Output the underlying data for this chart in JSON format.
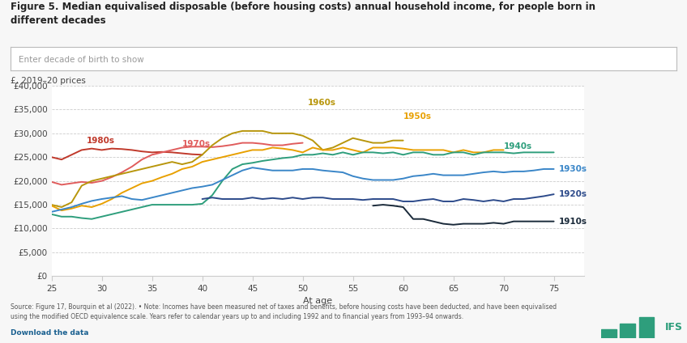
{
  "title": "Figure 5. Median equivalised disposable (before housing costs) annual household income, for people born in\ndifferent decades",
  "search_box_label": "Enter decade of birth to show",
  "ylabel": "£, 2019–20 prices",
  "xlabel": "At age",
  "source_text": "Source: Figure 17, Bourquin et al (2022). • Note: Incomes have been measured net of taxes and benefits, before housing costs have been deducted, and have been equivalised\nusing the modified OECD equivalence scale. Years refer to calendar years up to and including 1992 and to financial years from 1993–94 onwards.",
  "download_text": "Download the data",
  "background_color": "#f7f7f7",
  "plot_background": "#ffffff",
  "ylim": [
    0,
    40000
  ],
  "yticks": [
    0,
    5000,
    10000,
    15000,
    20000,
    25000,
    30000,
    35000,
    40000
  ],
  "xticks": [
    25,
    30,
    35,
    40,
    45,
    50,
    55,
    60,
    65,
    70,
    75
  ],
  "series": {
    "1980s": {
      "color": "#c0392b",
      "label_color": "#c0392b",
      "ages": [
        25,
        26,
        27,
        28,
        29,
        30,
        31,
        32,
        33,
        34,
        35,
        36,
        37,
        38,
        39,
        40
      ],
      "values": [
        25000,
        24500,
        25500,
        26500,
        26800,
        26500,
        26800,
        26700,
        26500,
        26200,
        26000,
        26100,
        26000,
        25800,
        25600,
        25500
      ],
      "label_age": 28.5,
      "label_val": 28500
    },
    "1970s": {
      "color": "#e05c5c",
      "label_color": "#e05c5c",
      "ages": [
        25,
        26,
        27,
        28,
        29,
        30,
        31,
        32,
        33,
        34,
        35,
        36,
        37,
        38,
        39,
        40,
        41,
        42,
        43,
        44,
        45,
        46,
        47,
        48,
        49,
        50
      ],
      "values": [
        19800,
        19200,
        19500,
        19800,
        19600,
        20000,
        20800,
        21800,
        23000,
        24500,
        25500,
        26000,
        26500,
        27000,
        27200,
        27200,
        27100,
        27300,
        27600,
        28000,
        28000,
        27800,
        27500,
        27500,
        27800,
        28000
      ],
      "label_age": 38,
      "label_val": 27800
    },
    "1960s": {
      "color": "#b8960c",
      "label_color": "#b8960c",
      "ages": [
        25,
        26,
        27,
        28,
        29,
        30,
        31,
        32,
        33,
        34,
        35,
        36,
        37,
        38,
        39,
        40,
        41,
        42,
        43,
        44,
        45,
        46,
        47,
        48,
        49,
        50,
        51,
        52,
        53,
        54,
        55,
        56,
        57,
        58,
        59,
        60
      ],
      "values": [
        15000,
        14500,
        15500,
        19000,
        20000,
        20500,
        21000,
        21500,
        22000,
        22500,
        23000,
        23500,
        24000,
        23500,
        24000,
        25500,
        27500,
        29000,
        30000,
        30500,
        30500,
        30500,
        30000,
        30000,
        30000,
        29500,
        28500,
        26500,
        27000,
        28000,
        29000,
        28500,
        28000,
        28000,
        28500,
        28500
      ],
      "label_age": 50,
      "label_val": 36500
    },
    "1950s": {
      "color": "#e8a000",
      "label_color": "#e8a000",
      "ages": [
        25,
        26,
        27,
        28,
        29,
        30,
        31,
        32,
        33,
        34,
        35,
        36,
        37,
        38,
        39,
        40,
        41,
        42,
        43,
        44,
        45,
        46,
        47,
        48,
        49,
        50,
        51,
        52,
        53,
        54,
        55,
        56,
        57,
        58,
        59,
        60,
        61,
        62,
        63,
        64,
        65,
        66,
        67,
        68,
        69,
        70
      ],
      "values": [
        14800,
        13800,
        14200,
        14800,
        14500,
        15200,
        16200,
        17500,
        18500,
        19500,
        20000,
        20800,
        21500,
        22500,
        23000,
        24000,
        24500,
        25000,
        25500,
        26000,
        26500,
        26500,
        27000,
        26800,
        26500,
        26000,
        27000,
        26500,
        26500,
        27000,
        26500,
        26000,
        27000,
        27000,
        27000,
        26800,
        26500,
        26500,
        26500,
        26500,
        26000,
        26500,
        26000,
        26000,
        26500,
        26500
      ],
      "label_age": 60,
      "label_val": 33500
    },
    "1940s": {
      "color": "#2e9e7c",
      "label_color": "#2e9e7c",
      "ages": [
        25,
        26,
        27,
        28,
        29,
        30,
        31,
        32,
        33,
        34,
        35,
        36,
        37,
        38,
        39,
        40,
        41,
        42,
        43,
        44,
        45,
        46,
        47,
        48,
        49,
        50,
        51,
        52,
        53,
        54,
        55,
        56,
        57,
        58,
        59,
        60,
        61,
        62,
        63,
        64,
        65,
        66,
        67,
        68,
        69,
        70,
        71,
        72,
        73,
        74,
        75
      ],
      "values": [
        13000,
        12500,
        12500,
        12200,
        12000,
        12500,
        13000,
        13500,
        14000,
        14500,
        15000,
        15000,
        15000,
        15000,
        15000,
        15200,
        17000,
        20000,
        22500,
        23500,
        23800,
        24200,
        24500,
        24800,
        25000,
        25500,
        25500,
        25800,
        25500,
        26000,
        25500,
        26000,
        26000,
        25800,
        26000,
        25500,
        26000,
        26000,
        25500,
        25500,
        26000,
        26000,
        25500,
        26000,
        26000,
        26000,
        25800,
        26000,
        26000,
        26000,
        26000
      ],
      "label_age": 70,
      "label_val": 27200
    },
    "1930s": {
      "color": "#3a86c8",
      "label_color": "#3a86c8",
      "ages": [
        25,
        26,
        27,
        28,
        29,
        30,
        31,
        32,
        33,
        34,
        35,
        36,
        37,
        38,
        39,
        40,
        41,
        42,
        43,
        44,
        45,
        46,
        47,
        48,
        49,
        50,
        51,
        52,
        53,
        54,
        55,
        56,
        57,
        58,
        59,
        60,
        61,
        62,
        63,
        64,
        65,
        66,
        67,
        68,
        69,
        70,
        71,
        72,
        73,
        74,
        75
      ],
      "values": [
        13500,
        14000,
        14500,
        15200,
        15800,
        16200,
        16500,
        16800,
        16200,
        16000,
        16500,
        17000,
        17500,
        18000,
        18500,
        18800,
        19200,
        20200,
        21200,
        22200,
        22800,
        22500,
        22200,
        22200,
        22200,
        22500,
        22500,
        22200,
        22000,
        21800,
        21000,
        20500,
        20200,
        20200,
        20200,
        20500,
        21000,
        21200,
        21500,
        21200,
        21200,
        21200,
        21500,
        21800,
        22000,
        21800,
        22000,
        22000,
        22200,
        22500,
        22500
      ],
      "label_age": 75.5,
      "label_val": 22500
    },
    "1920s": {
      "color": "#2c4a8a",
      "label_color": "#2c4a8a",
      "ages": [
        40,
        41,
        42,
        43,
        44,
        45,
        46,
        47,
        48,
        49,
        50,
        51,
        52,
        53,
        54,
        55,
        56,
        57,
        58,
        59,
        60,
        61,
        62,
        63,
        64,
        65,
        66,
        67,
        68,
        69,
        70,
        71,
        72,
        73,
        74,
        75
      ],
      "values": [
        16200,
        16500,
        16200,
        16200,
        16200,
        16500,
        16200,
        16400,
        16200,
        16500,
        16200,
        16500,
        16500,
        16200,
        16200,
        16200,
        16000,
        16200,
        16200,
        16200,
        15700,
        15700,
        16000,
        16200,
        15700,
        15700,
        16200,
        16000,
        15700,
        16000,
        15700,
        16200,
        16200,
        16500,
        16800,
        17200
      ],
      "label_age": 75.5,
      "label_val": 17300
    },
    "1910s": {
      "color": "#1a2a3a",
      "label_color": "#1a2a3a",
      "ages": [
        57,
        58,
        59,
        60,
        61,
        62,
        63,
        64,
        65,
        66,
        67,
        68,
        69,
        70,
        71,
        72,
        73,
        74,
        75
      ],
      "values": [
        14800,
        15000,
        14800,
        14500,
        12000,
        12000,
        11500,
        11000,
        10800,
        11000,
        11000,
        11000,
        11200,
        11000,
        11500,
        11500,
        11500,
        11500,
        11500
      ],
      "label_age": 75.5,
      "label_val": 11500
    }
  },
  "decade_labels": {
    "1980s": {
      "age": 28.5,
      "val": 28500,
      "ha": "left"
    },
    "1970s": {
      "age": 38.0,
      "val": 27800,
      "ha": "left"
    },
    "1960s": {
      "age": 50.5,
      "val": 36500,
      "ha": "left"
    },
    "1950s": {
      "age": 60.0,
      "val": 33500,
      "ha": "left"
    },
    "1940s": {
      "age": 70.0,
      "val": 27200,
      "ha": "left"
    },
    "1930s": {
      "age": 75.5,
      "val": 22500,
      "ha": "left"
    },
    "1920s": {
      "age": 75.5,
      "val": 17300,
      "ha": "left"
    },
    "1910s": {
      "age": 75.5,
      "val": 11500,
      "ha": "left"
    }
  }
}
